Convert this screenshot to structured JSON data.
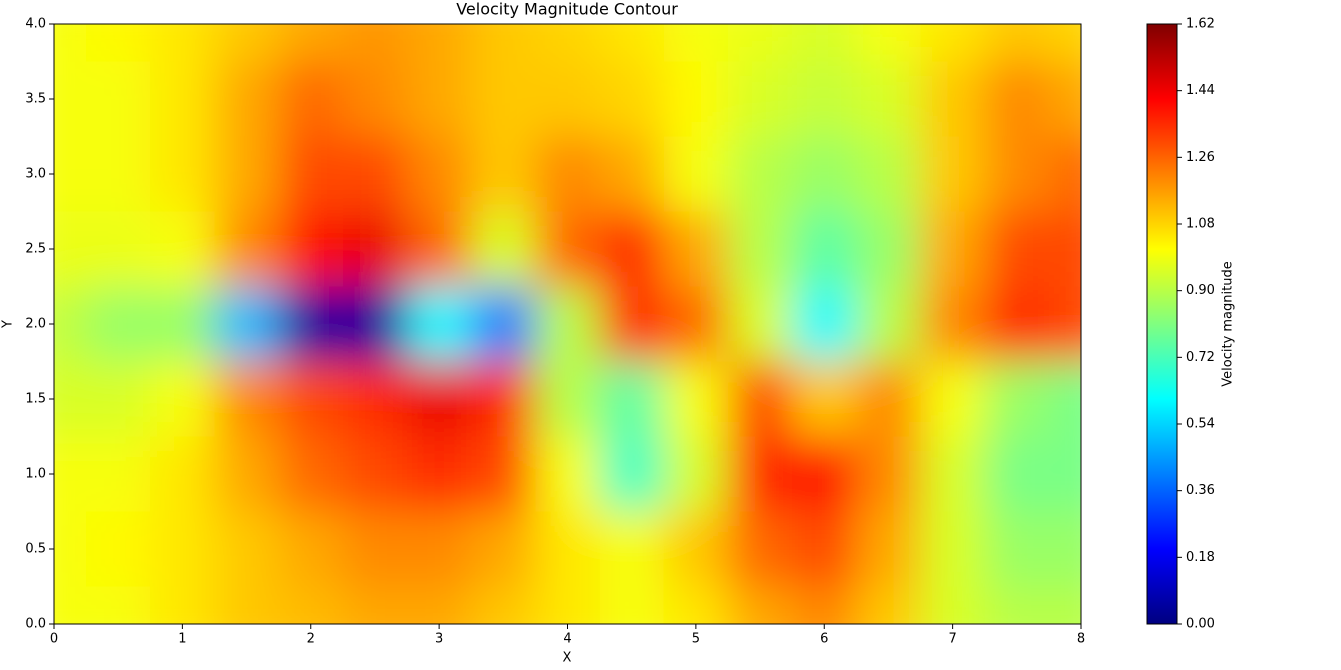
{
  "chart_data": {
    "type": "contour",
    "title": "Velocity Magnitude Contour",
    "x_label": "X",
    "y_label": "Y",
    "colorbar_label": "Velocity magnitude",
    "colormap": "jet",
    "x": [
      0,
      0.5,
      1,
      1.5,
      2,
      2.5,
      3,
      3.5,
      4,
      4.5,
      5,
      5.5,
      6,
      6.5,
      7,
      7.5,
      8
    ],
    "y": [
      4,
      3.5,
      3,
      2.5,
      2,
      1.5,
      1,
      0.5,
      0
    ],
    "z": [
      [
        1.0,
        1.02,
        1.05,
        1.1,
        1.15,
        1.18,
        1.15,
        1.1,
        1.08,
        1.05,
        1.0,
        0.98,
        0.95,
        1.0,
        1.05,
        1.1,
        1.08
      ],
      [
        1.0,
        1.0,
        1.05,
        1.15,
        1.25,
        1.2,
        1.15,
        1.1,
        1.1,
        1.08,
        1.02,
        0.95,
        0.92,
        0.95,
        1.1,
        1.2,
        1.15
      ],
      [
        1.0,
        1.0,
        1.05,
        1.15,
        1.3,
        1.3,
        1.2,
        1.1,
        1.2,
        1.15,
        1.0,
        0.9,
        0.85,
        0.9,
        1.1,
        1.2,
        1.25
      ],
      [
        0.98,
        0.98,
        1.0,
        1.2,
        1.4,
        1.45,
        1.25,
        0.95,
        1.25,
        1.35,
        1.15,
        0.9,
        0.75,
        0.85,
        1.15,
        1.3,
        1.3
      ],
      [
        0.92,
        0.85,
        0.85,
        0.5,
        0.05,
        0.05,
        0.6,
        0.4,
        0.9,
        1.35,
        1.25,
        0.95,
        0.6,
        0.9,
        1.2,
        1.35,
        1.3
      ],
      [
        0.95,
        0.95,
        1.0,
        1.2,
        1.3,
        1.35,
        1.45,
        1.35,
        0.9,
        0.75,
        1.0,
        1.3,
        1.1,
        1.2,
        1.0,
        0.85,
        0.8
      ],
      [
        1.0,
        1.0,
        1.05,
        1.15,
        1.25,
        1.3,
        1.35,
        1.3,
        1.0,
        0.7,
        0.95,
        1.35,
        1.4,
        1.2,
        0.95,
        0.8,
        0.8
      ],
      [
        1.0,
        1.02,
        1.05,
        1.1,
        1.15,
        1.2,
        1.2,
        1.15,
        1.05,
        1.0,
        1.1,
        1.25,
        1.3,
        1.15,
        0.95,
        0.85,
        0.85
      ],
      [
        1.0,
        1.0,
        1.05,
        1.1,
        1.12,
        1.15,
        1.15,
        1.1,
        1.05,
        1.0,
        1.05,
        1.15,
        1.2,
        1.1,
        0.95,
        0.9,
        0.9
      ]
    ],
    "xlim": [
      0,
      8
    ],
    "ylim": [
      0,
      4
    ],
    "xticks": [
      0,
      1,
      2,
      3,
      4,
      5,
      6,
      7,
      8
    ],
    "yticks": [
      {
        "value": 0,
        "label": "0.0"
      },
      {
        "value": 0.5,
        "label": "0.5"
      },
      {
        "value": 1,
        "label": "1.0"
      },
      {
        "value": 1.5,
        "label": "1.5"
      },
      {
        "value": 2,
        "label": "2.0"
      },
      {
        "value": 2.5,
        "label": "2.5"
      },
      {
        "value": 3,
        "label": "3.0"
      },
      {
        "value": 3.5,
        "label": "3.5"
      },
      {
        "value": 4,
        "label": "4.0"
      }
    ],
    "clim": [
      0,
      1.62
    ],
    "cticks": [
      {
        "value": 0,
        "label": "0.00"
      },
      {
        "value": 0.18,
        "label": "0.18"
      },
      {
        "value": 0.36,
        "label": "0.36"
      },
      {
        "value": 0.54,
        "label": "0.54"
      },
      {
        "value": 0.72,
        "label": "0.72"
      },
      {
        "value": 0.9,
        "label": "0.90"
      },
      {
        "value": 1.08,
        "label": "1.08"
      },
      {
        "value": 1.26,
        "label": "1.26"
      },
      {
        "value": 1.44,
        "label": "1.44"
      },
      {
        "value": 1.62,
        "label": "1.62"
      }
    ]
  }
}
